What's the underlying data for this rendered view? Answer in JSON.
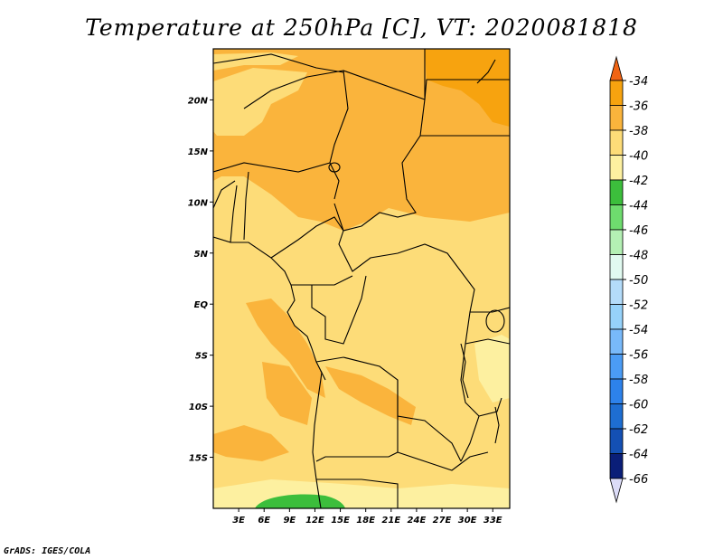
{
  "title": "Temperature at 250hPa [C], VT: 2020081818",
  "credit": "GrADS: IGES/COLA",
  "map": {
    "lon_range": [
      0,
      35
    ],
    "lat_range": [
      -20,
      25
    ],
    "lat_ticks": [
      {
        "value": 20,
        "label": "20N"
      },
      {
        "value": 15,
        "label": "15N"
      },
      {
        "value": 10,
        "label": "10N"
      },
      {
        "value": 5,
        "label": "5N"
      },
      {
        "value": 0,
        "label": "EQ"
      },
      {
        "value": -5,
        "label": "5S"
      },
      {
        "value": -10,
        "label": "10S"
      },
      {
        "value": -15,
        "label": "15S"
      }
    ],
    "lon_ticks": [
      {
        "value": 3,
        "label": "3E"
      },
      {
        "value": 6,
        "label": "6E"
      },
      {
        "value": 9,
        "label": "9E"
      },
      {
        "value": 12,
        "label": "12E"
      },
      {
        "value": 15,
        "label": "15E"
      },
      {
        "value": 18,
        "label": "18E"
      },
      {
        "value": 21,
        "label": "21E"
      },
      {
        "value": 24,
        "label": "24E"
      },
      {
        "value": 27,
        "label": "27E"
      },
      {
        "value": 30,
        "label": "30E"
      },
      {
        "value": 33,
        "label": "33E"
      }
    ]
  },
  "colorbar": {
    "levels": [
      {
        "label": "-34",
        "color": "#f06414"
      },
      {
        "label": "-36",
        "color": "#f7a30f"
      },
      {
        "label": "-38",
        "color": "#fab43c"
      },
      {
        "label": "-40",
        "color": "#fddc78"
      },
      {
        "label": "-42",
        "color": "#fdf0a0"
      },
      {
        "label": "-44",
        "color": "#3cbe3c"
      },
      {
        "label": "-46",
        "color": "#6edc6e"
      },
      {
        "label": "-48",
        "color": "#b4f0b4"
      },
      {
        "label": "-50",
        "color": "#e1faf0"
      },
      {
        "label": "-52",
        "color": "#b4dcfa"
      },
      {
        "label": "-54",
        "color": "#96d2fa"
      },
      {
        "label": "-56",
        "color": "#78b9fa"
      },
      {
        "label": "-58",
        "color": "#4b9cf5"
      },
      {
        "label": "-60",
        "color": "#2d82eb"
      },
      {
        "label": "-62",
        "color": "#1e6ed2"
      },
      {
        "label": "-64",
        "color": "#1450b4"
      },
      {
        "label": "-66",
        "color": "#0a1e78"
      }
    ],
    "top_color": "#e83c14",
    "bottom_color": "#dcdcf8"
  }
}
